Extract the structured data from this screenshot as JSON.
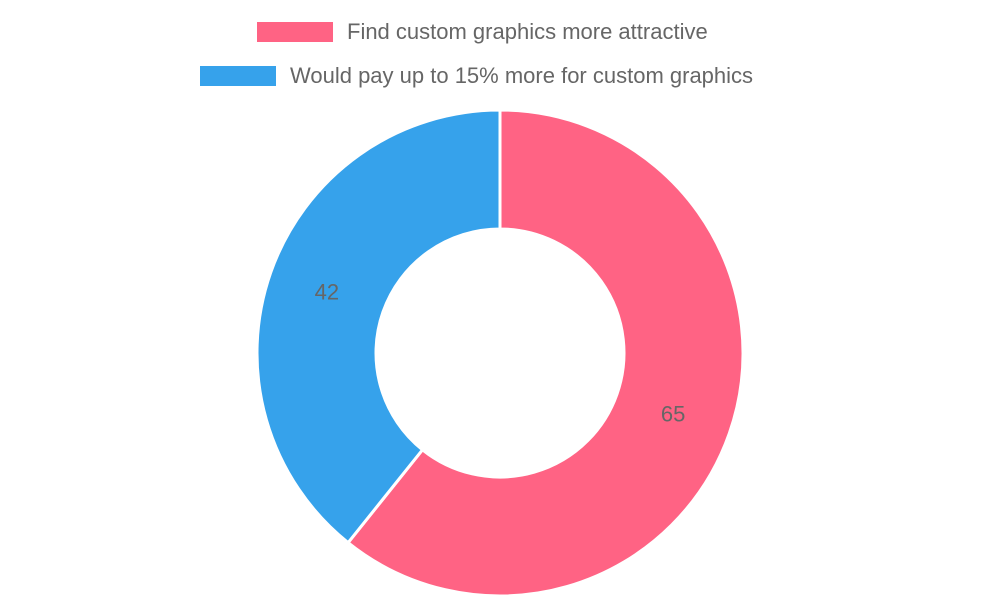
{
  "chart_data": {
    "type": "pie",
    "variant": "doughnut",
    "categories": [
      "Find custom graphics more attractive",
      "Would pay up to 15% more for custom graphics"
    ],
    "values": [
      65,
      42
    ],
    "colors": [
      "#FF6384",
      "#36A2EB"
    ],
    "legend_position": "top",
    "data_labels": [
      "65",
      "42"
    ]
  }
}
